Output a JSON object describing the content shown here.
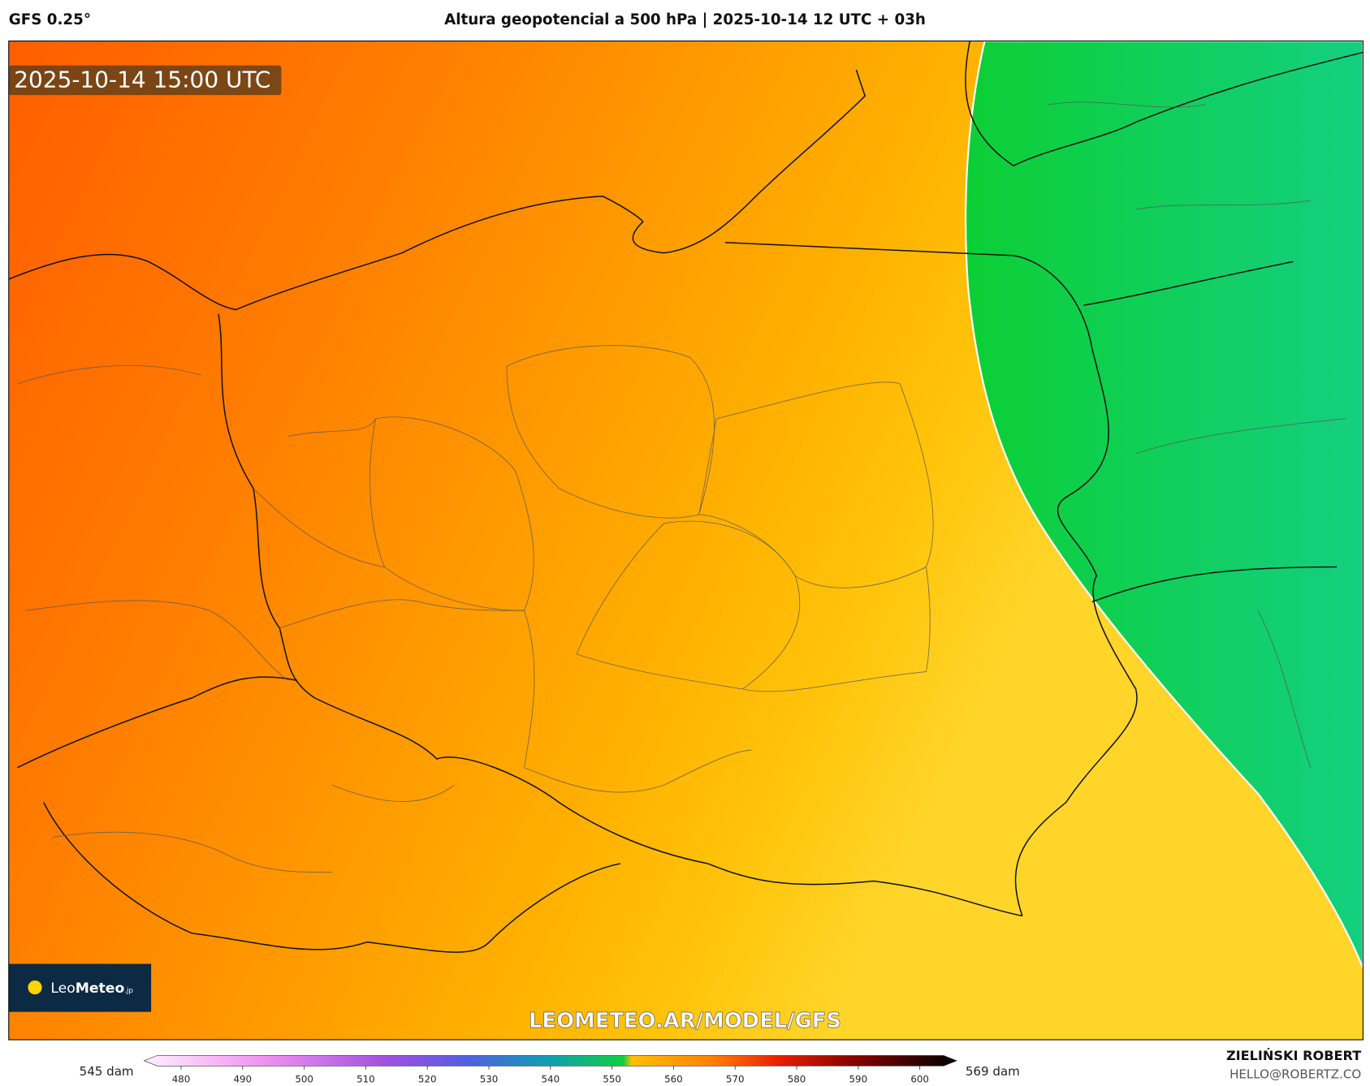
{
  "header": {
    "model": "GFS 0.25°",
    "title": "Altura geopotencial a 500 hPa | 2025-10-14 12 UTC + 03h"
  },
  "map": {
    "valid_time": "2025-10-14 15:00 UTC",
    "watermark": "LEOMETEO.AR/MODEL/GFS",
    "logo": {
      "light": "Leo",
      "bold": "Meteo",
      "suffix": ".jp"
    }
  },
  "colorbar": {
    "min_label": "545 dam",
    "max_label": "569 dam",
    "lim": [
      474,
      606
    ],
    "ticks": [
      480,
      490,
      500,
      510,
      520,
      530,
      540,
      550,
      560,
      570,
      580,
      590,
      600
    ]
  },
  "credits": {
    "author": "ZIELIŃSKI ROBERT",
    "email": "HELLO@ROBERTZ.CO"
  }
}
